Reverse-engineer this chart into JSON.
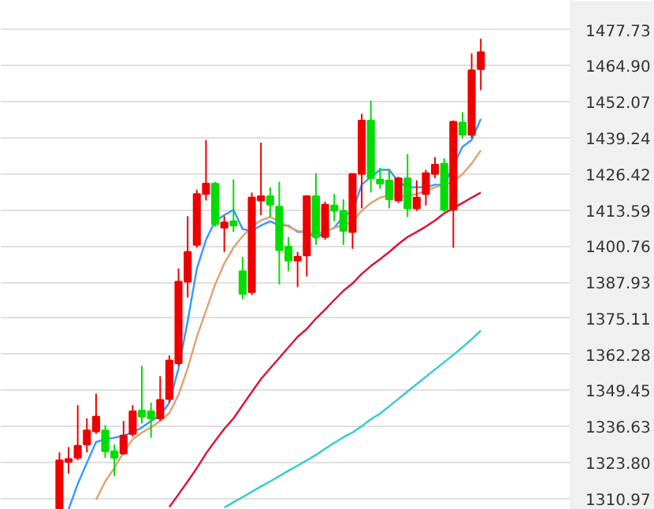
{
  "chart_data": {
    "type": "candlestick",
    "categories": [
      null,
      null,
      null,
      null,
      null,
      null,
      null,
      null,
      null,
      null,
      null,
      null,
      null,
      null,
      null,
      null,
      null,
      null,
      null,
      null,
      null,
      null,
      null,
      null,
      null,
      null,
      null,
      null,
      null,
      null,
      null,
      null,
      null,
      null,
      null,
      null,
      null,
      null,
      null,
      null,
      null,
      null,
      null,
      null,
      null,
      null,
      null
    ],
    "ohlc": [
      [
        1307.5,
        1327.4,
        1307.2,
        1324.6
      ],
      [
        1324.0,
        1329.3,
        1319.9,
        1325.1
      ],
      [
        1325.5,
        1344.2,
        1324.6,
        1329.8
      ],
      [
        1330.2,
        1339.5,
        1327.4,
        1335.2
      ],
      [
        1334.9,
        1348.3,
        1334.0,
        1340.1
      ],
      [
        1335.2,
        1337.1,
        1325.5,
        1327.8
      ],
      [
        1327.8,
        1330.2,
        1319.0,
        1325.5
      ],
      [
        1327.0,
        1338.6,
        1326.5,
        1333.4
      ],
      [
        1334.0,
        1344.2,
        1333.0,
        1342.0
      ],
      [
        1342.3,
        1358.2,
        1337.7,
        1340.1
      ],
      [
        1342.0,
        1345.1,
        1332.6,
        1339.5
      ],
      [
        1339.5,
        1354.5,
        1338.6,
        1346.1
      ],
      [
        1346.4,
        1361.9,
        1345.1,
        1360.1
      ],
      [
        1359.1,
        1392.8,
        1358.2,
        1388.1
      ],
      [
        1388.1,
        1411.4,
        1382.5,
        1398.7
      ],
      [
        1401.2,
        1420.8,
        1400.2,
        1419.3
      ],
      [
        1419.3,
        1438.5,
        1417.0,
        1423.0
      ],
      [
        1423.0,
        1423.6,
        1407.7,
        1408.6
      ],
      [
        1407.3,
        1411.4,
        1398.7,
        1409.2
      ],
      [
        1409.6,
        1424.5,
        1405.8,
        1408.1
      ],
      [
        1391.8,
        1396.9,
        1381.9,
        1383.8
      ],
      [
        1384.4,
        1419.8,
        1383.4,
        1418.0
      ],
      [
        1417.0,
        1437.6,
        1411.8,
        1418.5
      ],
      [
        1418.5,
        1421.7,
        1411.1,
        1415.5
      ],
      [
        1414.8,
        1423.6,
        1387.1,
        1399.3
      ],
      [
        1400.6,
        1404.0,
        1391.8,
        1395.6
      ],
      [
        1395.6,
        1398.7,
        1386.2,
        1397.0
      ],
      [
        1397.4,
        1418.9,
        1390.0,
        1418.5
      ],
      [
        1418.5,
        1426.7,
        1401.2,
        1404.0
      ],
      [
        1404.0,
        1416.6,
        1403.0,
        1415.5
      ],
      [
        1415.2,
        1419.3,
        1409.6,
        1413.3
      ],
      [
        1413.3,
        1417.4,
        1401.2,
        1406.2
      ],
      [
        1405.8,
        1426.7,
        1399.8,
        1426.4
      ],
      [
        1426.4,
        1447.8,
        1414.2,
        1445.4
      ],
      [
        1445.4,
        1452.5,
        1419.8,
        1424.9
      ],
      [
        1424.5,
        1428.6,
        1421.1,
        1423.0
      ],
      [
        1424.1,
        1428.2,
        1414.2,
        1417.4
      ],
      [
        1417.0,
        1425.4,
        1416.1,
        1424.9
      ],
      [
        1424.9,
        1433.5,
        1411.1,
        1414.2
      ],
      [
        1414.2,
        1424.1,
        1413.3,
        1418.0
      ],
      [
        1419.3,
        1427.9,
        1415.2,
        1426.7
      ],
      [
        1426.4,
        1432.4,
        1424.9,
        1429.7
      ],
      [
        1430.1,
        1432.0,
        1412.9,
        1413.7
      ],
      [
        1413.7,
        1445.4,
        1400.2,
        1445.0
      ],
      [
        1444.7,
        1448.4,
        1439.1,
        1440.4
      ],
      [
        1440.4,
        1469.3,
        1439.1,
        1463.3
      ],
      [
        1463.7,
        1474.5,
        1456.2,
        1469.7
      ]
    ],
    "colors": [
      "#ee0000",
      "#ee0000",
      "#ee0000",
      "#ee0000",
      "#ee0000",
      "#00dd00",
      "#00dd00",
      "#ee0000",
      "#ee0000",
      "#00dd00",
      "#00dd00",
      "#ee0000",
      "#ee0000",
      "#ee0000",
      "#ee0000",
      "#ee0000",
      "#ee0000",
      "#00dd00",
      "#ee0000",
      "#00dd00",
      "#00dd00",
      "#ee0000",
      "#ee0000",
      "#00dd00",
      "#00dd00",
      "#00dd00",
      "#ee0000",
      "#ee0000",
      "#00dd00",
      "#ee0000",
      "#00dd00",
      "#00dd00",
      "#ee0000",
      "#ee0000",
      "#00dd00",
      "#00dd00",
      "#00dd00",
      "#ee0000",
      "#00dd00",
      "#ee0000",
      "#ee0000",
      "#ee0000",
      "#00dd00",
      "#ee0000",
      "#00dd00",
      "#ee0000",
      "#ee0000"
    ],
    "series": [
      {
        "type": "line",
        "color": "#3399ff",
        "values": [
          null,
          1307.2,
          1316.2,
          1323.7,
          1331.1,
          1332.1,
          1332.6,
          1333.4,
          1334.5,
          1336.3,
          1338.6,
          1340.5,
          1345.1,
          1357.3,
          1374.1,
          1392.7,
          1403.0,
          1409.6,
          1411.8,
          1413.7,
          1406.8,
          1406.2,
          1408.1,
          1409.6,
          1408.1,
          1408.1,
          1405.8,
          1405.8,
          1403.6,
          1405.8,
          1407.3,
          1411.4,
          1413.3,
          1422.6,
          1425.4,
          1427.9,
          1427.9,
          1423.6,
          1421.7,
          1421.7,
          1421.7,
          1422.6,
          1422.6,
          null,
          1436.1,
          1438.5,
          1446.0
        ]
      },
      {
        "type": "line",
        "color": "#e0a070",
        "values": [
          null,
          null,
          null,
          null,
          1310.6,
          1317.1,
          1321.8,
          1327.4,
          1332.1,
          1334.5,
          1336.3,
          1338.6,
          1341.4,
          1347.9,
          1357.3,
          1368.5,
          1377.8,
          1387.1,
          1394.6,
          1400.2,
          1404.3,
          1407.7,
          1409.9,
          1411.1,
          1409.6,
          1407.7,
          1406.2,
          1405.8,
          1405.5,
          1405.8,
          1407.3,
          1408.1,
          1409.6,
          1413.3,
          1416.1,
          1418.0,
          1418.9,
          1418.5,
          1418.5,
          1419.3,
          1420.4,
          1421.7,
          1422.6,
          1423.6,
          1426.4,
          1430.1,
          1434.8
        ]
      },
      {
        "type": "line",
        "color": "#dd1133",
        "values": [
          null,
          null,
          null,
          null,
          null,
          null,
          null,
          null,
          null,
          null,
          null,
          null,
          1308.0,
          1312.5,
          1317.1,
          1321.8,
          1327.0,
          1331.5,
          1335.8,
          1339.5,
          1344.2,
          1348.9,
          1353.5,
          1357.3,
          1361.0,
          1364.8,
          1368.5,
          1371.3,
          1375.0,
          1378.2,
          1381.6,
          1384.9,
          1387.5,
          1390.9,
          1393.7,
          1396.1,
          1398.7,
          1401.5,
          1404.0,
          1405.8,
          1407.7,
          1409.9,
          1412.4,
          1414.2,
          1416.1,
          1418.0,
          1419.8
        ]
      },
      {
        "type": "line",
        "color": "#33cccc",
        "values": [
          null,
          null,
          null,
          null,
          null,
          null,
          null,
          null,
          null,
          null,
          null,
          null,
          null,
          null,
          null,
          null,
          null,
          null,
          1307.8,
          1309.7,
          1311.5,
          1313.4,
          1315.3,
          1317.1,
          1319.0,
          1320.9,
          1322.7,
          1324.6,
          1326.5,
          1328.7,
          1330.8,
          1332.8,
          1334.5,
          1336.7,
          1339.2,
          1341.2,
          1343.8,
          1346.4,
          1349.1,
          1351.7,
          1354.3,
          1356.9,
          1359.5,
          1362.1,
          1364.8,
          1367.7,
          1370.7
        ]
      }
    ],
    "ylim": [
      1307.0,
      1488.0
    ],
    "yticks": [
      {
        "value": 1477.73,
        "label": "1477.73"
      },
      {
        "value": 1464.9,
        "label": "1464.90"
      },
      {
        "value": 1452.07,
        "label": "1452.07"
      },
      {
        "value": 1439.24,
        "label": "1439.24"
      },
      {
        "value": 1426.42,
        "label": "1426.42"
      },
      {
        "value": 1413.59,
        "label": "1413.59"
      },
      {
        "value": 1400.76,
        "label": "1400.76"
      },
      {
        "value": 1387.93,
        "label": "1387.93"
      },
      {
        "value": 1375.11,
        "label": "1375.11"
      },
      {
        "value": 1362.28,
        "label": "1362.28"
      },
      {
        "value": 1349.45,
        "label": "1349.45"
      },
      {
        "value": 1336.63,
        "label": "1336.63"
      },
      {
        "value": 1323.8,
        "label": "1323.80"
      },
      {
        "value": 1310.97,
        "label": "1310.97"
      }
    ],
    "grid": "y",
    "tick_labels": "y"
  }
}
